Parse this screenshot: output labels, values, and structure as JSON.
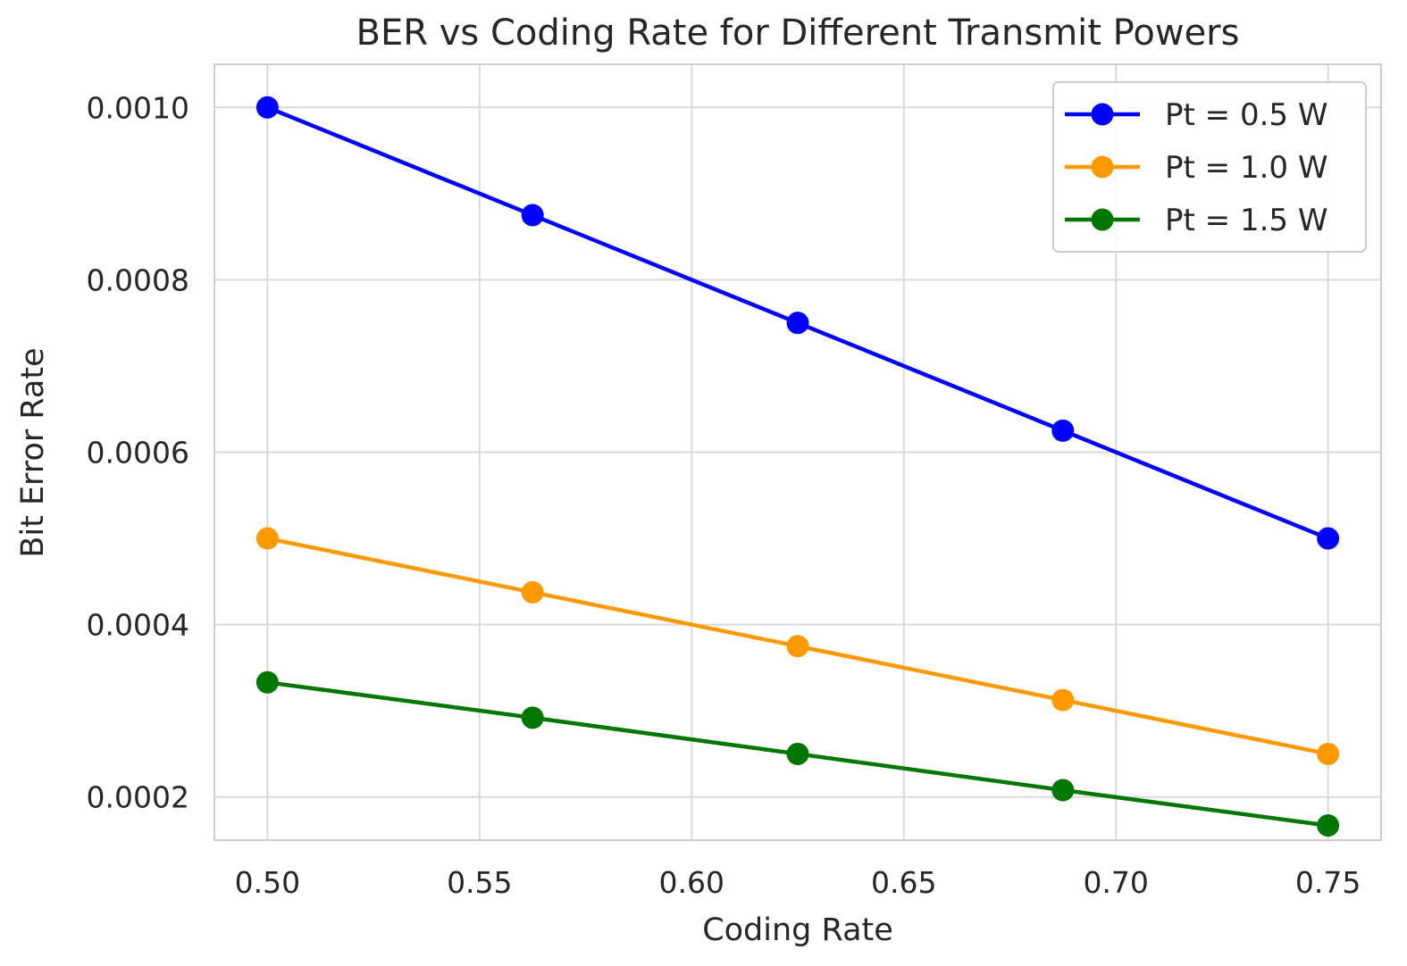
{
  "chart_data": {
    "type": "line",
    "title": "BER vs Coding Rate for Different Transmit Powers",
    "xlabel": "Coding Rate",
    "ylabel": "Bit Error Rate",
    "xlim": [
      0.4875,
      0.7625
    ],
    "ylim": [
      0.00015,
      0.00105
    ],
    "xticks": [
      0.5,
      0.55,
      0.6,
      0.65,
      0.7,
      0.75
    ],
    "xtick_labels": [
      "0.50",
      "0.55",
      "0.60",
      "0.65",
      "0.70",
      "0.75"
    ],
    "yticks": [
      0.0002,
      0.0004,
      0.0006,
      0.0008,
      0.001
    ],
    "ytick_labels": [
      "0.0002",
      "0.0004",
      "0.0006",
      "0.0008",
      "0.0010"
    ],
    "grid": true,
    "legend_position": "top-right",
    "x": [
      0.5,
      0.5625,
      0.625,
      0.6875,
      0.75
    ],
    "series": [
      {
        "name": "Pt = 0.5 W",
        "color": "#0000ff",
        "values": [
          0.001,
          0.000875,
          0.00075,
          0.000625,
          0.0005
        ]
      },
      {
        "name": "Pt = 1.0 W",
        "color": "#ff9900",
        "values": [
          0.0005,
          0.0004375,
          0.000375,
          0.0003125,
          0.00025
        ]
      },
      {
        "name": "Pt = 1.5 W",
        "color": "#007700",
        "values": [
          0.000333,
          0.000292,
          0.00025,
          0.000208,
          0.000167
        ]
      }
    ]
  }
}
